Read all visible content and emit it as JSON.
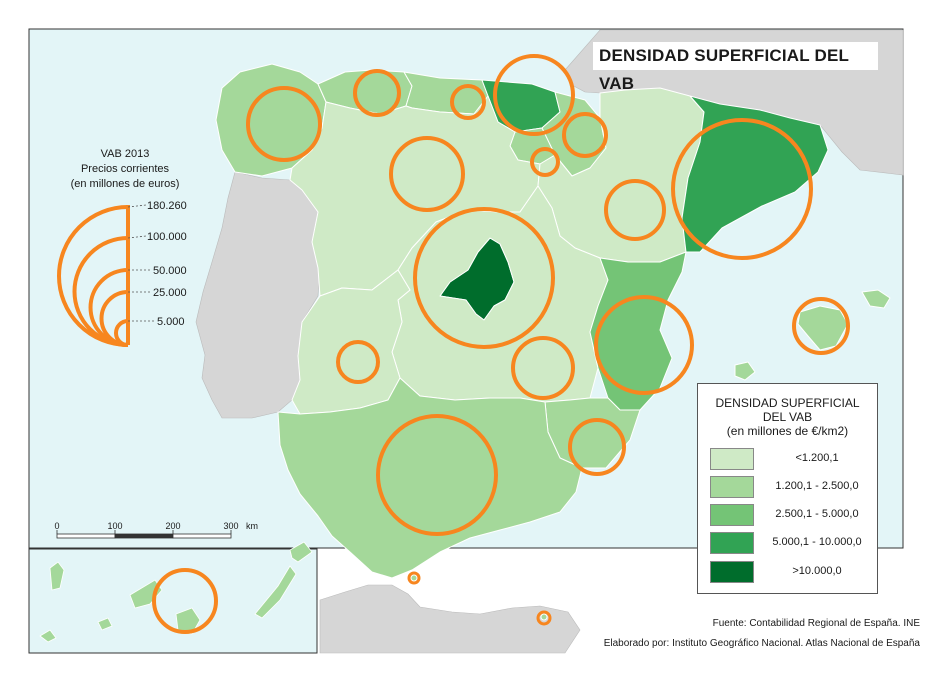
{
  "title": "DENSIDAD SUPERFICIAL DEL VAB",
  "bubble_legend": {
    "title_lines": [
      "VAB 2013",
      "Precios corrientes",
      "(en millones de euros)"
    ],
    "values": [
      "180.260",
      "100.000",
      "50.000",
      "25.000",
      "5.000"
    ]
  },
  "color_legend": {
    "title_lines": [
      "DENSIDAD SUPERFICIAL",
      "DEL VAB",
      "(en millones de €/km2)"
    ],
    "classes": [
      {
        "label": "<1.200,1",
        "color": "#cfeac6"
      },
      {
        "label": "1.200,1 - 2.500,0",
        "color": "#a4d89a"
      },
      {
        "label": "2.500,1 - 5.000,0",
        "color": "#74c476"
      },
      {
        "label": "5.000,1 - 10.000,0",
        "color": "#31a354"
      },
      {
        "label": ">10.000,0",
        "color": "#006d2c"
      }
    ]
  },
  "scale_bar": {
    "ticks": [
      "0",
      "100",
      "200",
      "300"
    ],
    "unit": "km"
  },
  "source": {
    "line1": "Fuente: Contabilidad Regional de España. INE",
    "line2": "Elaborado por: Instituto Geográfico Nacional. Atlas Nacional de España"
  },
  "colors": {
    "sea": "#e3f5f7",
    "foreign_land": "#d6d6d6",
    "bubble": "#f7861f",
    "border": "#ffffff"
  }
}
